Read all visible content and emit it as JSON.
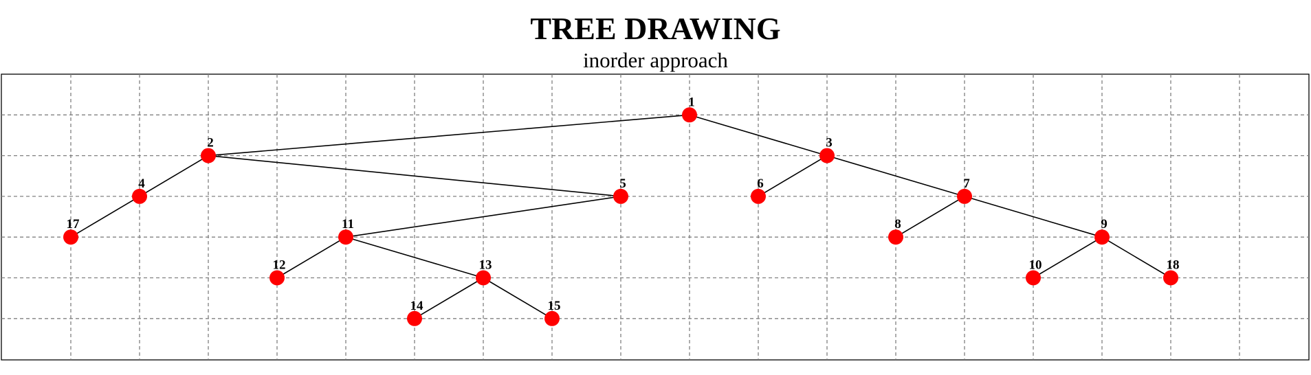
{
  "header": {
    "title": "TREE DRAWING",
    "subtitle": "inorder approach"
  },
  "colors": {
    "node_fill": "#ff0000",
    "edge": "#000000",
    "grid": "#808080",
    "frame": "#000000"
  },
  "grid": {
    "visible": true,
    "style": "dashed",
    "columns": 19,
    "rows": 7
  },
  "tree": {
    "root": "1",
    "nodes": [
      {
        "id": "1",
        "label": "1",
        "col": 10,
        "depth": 1
      },
      {
        "id": "2",
        "label": "2",
        "col": 3,
        "depth": 2
      },
      {
        "id": "3",
        "label": "3",
        "col": 12,
        "depth": 2
      },
      {
        "id": "4",
        "label": "4",
        "col": 2,
        "depth": 3
      },
      {
        "id": "5",
        "label": "5",
        "col": 9,
        "depth": 3
      },
      {
        "id": "6",
        "label": "6",
        "col": 11,
        "depth": 3
      },
      {
        "id": "7",
        "label": "7",
        "col": 14,
        "depth": 3
      },
      {
        "id": "17",
        "label": "17",
        "col": 1,
        "depth": 4
      },
      {
        "id": "11",
        "label": "11",
        "col": 5,
        "depth": 4
      },
      {
        "id": "8",
        "label": "8",
        "col": 13,
        "depth": 4
      },
      {
        "id": "9",
        "label": "9",
        "col": 16,
        "depth": 4
      },
      {
        "id": "12",
        "label": "12",
        "col": 4,
        "depth": 5
      },
      {
        "id": "13",
        "label": "13",
        "col": 7,
        "depth": 5
      },
      {
        "id": "10",
        "label": "10",
        "col": 15,
        "depth": 5
      },
      {
        "id": "18",
        "label": "18",
        "col": 17,
        "depth": 5
      },
      {
        "id": "14",
        "label": "14",
        "col": 6,
        "depth": 6
      },
      {
        "id": "15",
        "label": "15",
        "col": 8,
        "depth": 6
      }
    ],
    "edges": [
      [
        "1",
        "2"
      ],
      [
        "1",
        "3"
      ],
      [
        "2",
        "4"
      ],
      [
        "2",
        "5"
      ],
      [
        "3",
        "6"
      ],
      [
        "3",
        "7"
      ],
      [
        "4",
        "17"
      ],
      [
        "5",
        "11"
      ],
      [
        "7",
        "8"
      ],
      [
        "7",
        "9"
      ],
      [
        "11",
        "12"
      ],
      [
        "11",
        "13"
      ],
      [
        "9",
        "10"
      ],
      [
        "9",
        "18"
      ],
      [
        "13",
        "14"
      ],
      [
        "13",
        "15"
      ]
    ]
  }
}
